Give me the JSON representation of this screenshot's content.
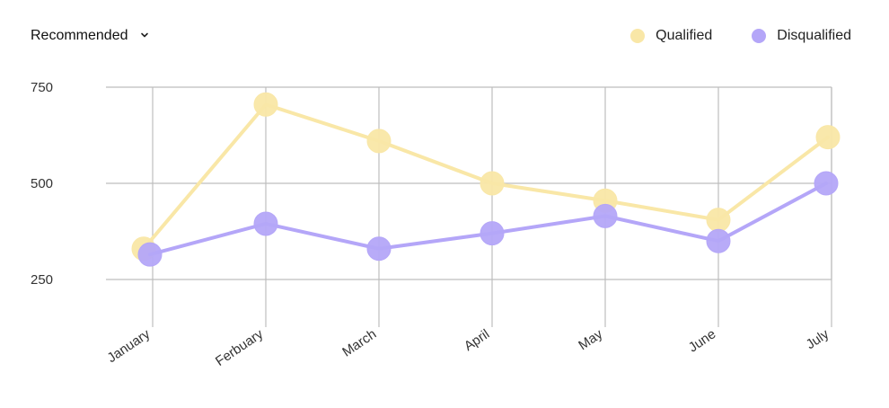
{
  "filter": {
    "label": "Recommended",
    "chevron_icon": "chevron-down-icon"
  },
  "legend": [
    {
      "label": "Qualified",
      "color": "#F9E7A7"
    },
    {
      "label": "Disqualified",
      "color": "#B4A6F8"
    }
  ],
  "chart_data": {
    "type": "line",
    "categories": [
      "January",
      "Ferbuary",
      "March",
      "April",
      "May",
      "June",
      "July"
    ],
    "y_ticks": [
      "750",
      "500",
      "250"
    ],
    "ylim": [
      150,
      750
    ],
    "grid": true,
    "legend_position": "top-right",
    "series": [
      {
        "name": "Qualified",
        "color": "#F9E7A7",
        "values": [
          330,
          705,
          610,
          500,
          455,
          405,
          620
        ]
      },
      {
        "name": "Disqualified",
        "color": "#B4A6F8",
        "values": [
          315,
          395,
          330,
          370,
          415,
          350,
          500
        ]
      }
    ]
  }
}
